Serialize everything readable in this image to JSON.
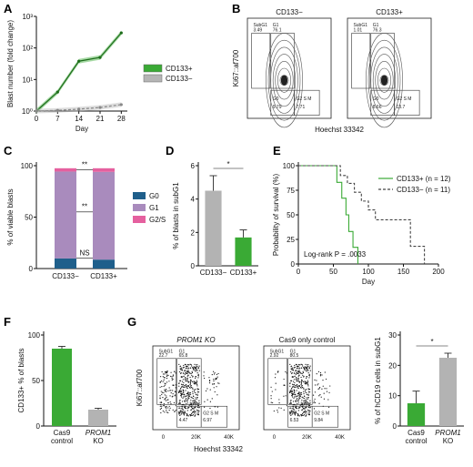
{
  "panels": {
    "A": "A",
    "B": "B",
    "C": "C",
    "D": "D",
    "E": "E",
    "F": "F",
    "G": "G"
  },
  "chart_data": [
    {
      "id": "A",
      "type": "line",
      "xlabel": "Day",
      "ylabel": "Blast number (fold change)",
      "xticks": [
        "0",
        "7",
        "14",
        "21",
        "28"
      ],
      "yticks": [
        "10⁰",
        "10¹",
        "10²",
        "10³"
      ],
      "ylog": true,
      "ylim": [
        1,
        1000
      ],
      "xlim": [
        0,
        30
      ],
      "legend_position": "right",
      "series": [
        {
          "name": "CD133+",
          "color": "#3aaa35",
          "x": [
            0,
            7,
            14,
            21,
            28
          ],
          "y": [
            1,
            4,
            38,
            50,
            300
          ]
        },
        {
          "name": "CD133−",
          "color": "#b5b5b5",
          "x": [
            0,
            7,
            14,
            21,
            28
          ],
          "y": [
            1,
            1.05,
            1.15,
            1.3,
            1.6
          ]
        }
      ]
    },
    {
      "id": "B",
      "type": "scatter",
      "xlabel": "Hoechst 33342",
      "ylabel": "Ki67::af700",
      "plots": [
        {
          "title": "CD133−",
          "gates": [
            {
              "name": "SubG1",
              "value": "3.49"
            },
            {
              "name": "G1",
              "value": "76.1"
            },
            {
              "name": "G0",
              "value": "9.79"
            },
            {
              "name": "G2 S M",
              "value": "7.71"
            }
          ]
        },
        {
          "title": "CD133+",
          "gates": [
            {
              "name": "SubG1",
              "value": "1.01"
            },
            {
              "name": "G1",
              "value": "76.3"
            },
            {
              "name": "G0",
              "value": "8.66"
            },
            {
              "name": "G2 S M",
              "value": "13.7"
            }
          ]
        }
      ]
    },
    {
      "id": "C",
      "type": "bar",
      "ylabel": "% of viable blasts",
      "categories": [
        "CD133−",
        "CD133+"
      ],
      "yticks": [
        "0",
        "50",
        "100"
      ],
      "ylim": [
        0,
        100
      ],
      "legend_position": "right",
      "series": [
        {
          "name": "G0",
          "color": "#1f5f8b",
          "values": [
            9.8,
            8.7
          ]
        },
        {
          "name": "G1",
          "color": "#a98bbd",
          "values": [
            84.5,
            85.3
          ]
        },
        {
          "name": "G2/S",
          "color": "#e5609f",
          "values": [
            3.2,
            3.5
          ]
        }
      ],
      "annotations": [
        "**",
        "**",
        "NS"
      ]
    },
    {
      "id": "D",
      "type": "bar",
      "ylabel": "% of blasts in subG1",
      "categories": [
        "CD133−",
        "CD133+"
      ],
      "yticks": [
        "0",
        "2",
        "4",
        "6"
      ],
      "ylim": [
        0,
        6
      ],
      "values": [
        4.5,
        1.7
      ],
      "errors": [
        0.9,
        0.45
      ],
      "colors": [
        "#b3b3b3",
        "#3aaa35"
      ],
      "annotation": "*"
    },
    {
      "id": "E",
      "type": "line",
      "xlabel": "Day",
      "ylabel": "Probability of survival (%)",
      "xticks": [
        "0",
        "50",
        "100",
        "150",
        "200"
      ],
      "yticks": [
        "0",
        "25",
        "50",
        "75",
        "100"
      ],
      "xlim": [
        0,
        200
      ],
      "ylim": [
        0,
        100
      ],
      "legend_position": "top-right",
      "annotation": "Log-rank P = .0033",
      "series": [
        {
          "name": "CD133+ (n = 12)",
          "color": "#3aaa35",
          "dash": false,
          "x": [
            0,
            55,
            55,
            62,
            62,
            68,
            68,
            72,
            72,
            78,
            78,
            85,
            85
          ],
          "y": [
            100,
            100,
            83,
            83,
            67,
            67,
            50,
            50,
            33,
            33,
            17,
            17,
            0
          ]
        },
        {
          "name": "CD133− (n = 11)",
          "color": "#444444",
          "dash": true,
          "x": [
            0,
            60,
            60,
            70,
            70,
            80,
            80,
            90,
            90,
            100,
            100,
            110,
            110,
            160,
            160,
            180,
            180
          ],
          "y": [
            100,
            100,
            90,
            90,
            82,
            82,
            73,
            73,
            64,
            64,
            55,
            55,
            45,
            45,
            18,
            18,
            0
          ]
        }
      ]
    },
    {
      "id": "F",
      "type": "bar",
      "ylabel": "CD133+ % of blasts",
      "categories": [
        "Cas9 control",
        "PROM1 KO"
      ],
      "yticks": [
        "0",
        "50",
        "100"
      ],
      "ylim": [
        0,
        100
      ],
      "values": [
        85,
        18
      ],
      "errors": [
        2.5,
        1.5
      ],
      "colors": [
        "#3aaa35",
        "#b3b3b3"
      ]
    },
    {
      "id": "G",
      "type": "scatter",
      "xlabel": "Hoechst 33342",
      "ylabel": "Ki67::af700",
      "xticks": [
        "0",
        "20K",
        "40K"
      ],
      "plots": [
        {
          "title": "PROM1 KO",
          "gates": [
            {
              "name": "SubG1",
              "value": "22.7"
            },
            {
              "name": "G1",
              "value": "65.8"
            },
            {
              "name": "G0",
              "value": "4.47"
            },
            {
              "name": "G2 S M",
              "value": "6.97"
            }
          ]
        },
        {
          "title": "Cas9 only control",
          "gates": [
            {
              "name": "SubG1",
              "value": "2.92"
            },
            {
              "name": "G1",
              "value": "80.5"
            },
            {
              "name": "G0",
              "value": "6.53"
            },
            {
              "name": "G2 S M",
              "value": "9.84"
            }
          ]
        }
      ]
    },
    {
      "id": "G2",
      "type": "bar",
      "ylabel": "% of hCD19 cells in subG1",
      "categories": [
        "Cas9 control",
        "PROM1 KO"
      ],
      "yticks": [
        "0",
        "10",
        "20",
        "30"
      ],
      "ylim": [
        0,
        30
      ],
      "values": [
        7.5,
        22.5
      ],
      "errors": [
        4,
        1.5
      ],
      "colors": [
        "#3aaa35",
        "#b3b3b3"
      ],
      "annotation": "*"
    }
  ]
}
